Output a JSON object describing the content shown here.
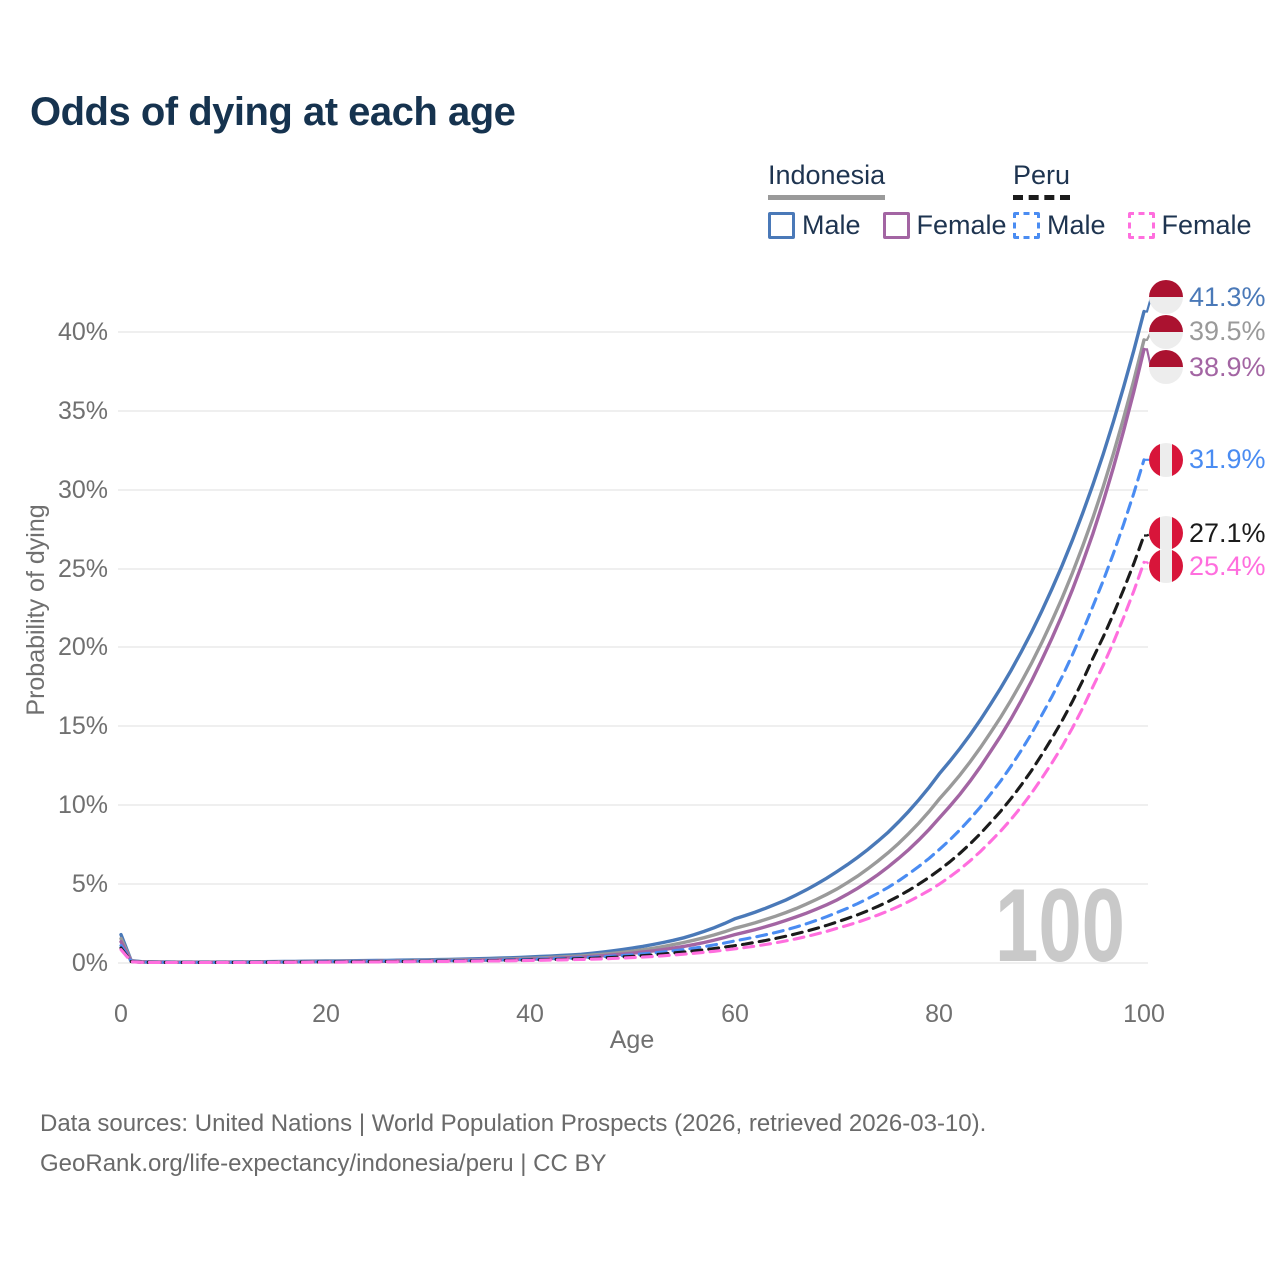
{
  "title": "Odds of dying at each age",
  "legend": {
    "groups": [
      {
        "label": "Indonesia",
        "line_style": "solid",
        "underline_color": "#9a9a9a",
        "items": [
          {
            "label": "Male",
            "color": "#4a79b8",
            "line_style": "solid"
          },
          {
            "label": "Female",
            "color": "#a365a3",
            "line_style": "solid"
          }
        ]
      },
      {
        "label": "Peru",
        "line_style": "dashed",
        "underline_color": "#1b1b1b",
        "items": [
          {
            "label": "Male",
            "color": "#4a8cf2",
            "line_style": "dashed"
          },
          {
            "label": "Female",
            "color": "#ff6ede",
            "line_style": "dashed"
          }
        ]
      }
    ]
  },
  "chart_data": {
    "type": "line",
    "title": "Odds of dying at each age",
    "xlabel": "Age",
    "ylabel": "Probability of dying",
    "xlim": [
      0,
      100
    ],
    "ylim": [
      0,
      43
    ],
    "grid": true,
    "legend_position": "top-right",
    "watermark": "100",
    "x_tick_labels": [
      "0",
      "20",
      "40",
      "60",
      "80",
      "100"
    ],
    "y_tick_labels": [
      "0%",
      "5%",
      "10%",
      "15%",
      "20%",
      "25%",
      "30%",
      "35%",
      "40%"
    ],
    "x": [
      0,
      1,
      2,
      5,
      10,
      15,
      20,
      25,
      30,
      35,
      40,
      45,
      50,
      55,
      60,
      65,
      70,
      75,
      80,
      85,
      90,
      95,
      100
    ],
    "series": [
      {
        "name": "Indonesia male",
        "country": "indonesia",
        "sex": "male",
        "color": "#4a79b8",
        "line_style": "solid",
        "end_value": 41.3,
        "end_label": "41.3%",
        "values": [
          1.8,
          0.15,
          0.08,
          0.06,
          0.06,
          0.09,
          0.13,
          0.16,
          0.2,
          0.27,
          0.38,
          0.55,
          0.95,
          1.6,
          2.8,
          4.0,
          5.8,
          8.3,
          12.0,
          16.4,
          22.3,
          30.3,
          41.3
        ]
      },
      {
        "name": "Indonesia both sexes",
        "country": "indonesia",
        "sex": "both",
        "color": "#9a9a9a",
        "line_style": "solid",
        "end_value": 39.5,
        "end_label": "39.5%",
        "values": [
          1.55,
          0.13,
          0.07,
          0.05,
          0.05,
          0.07,
          0.1,
          0.12,
          0.16,
          0.21,
          0.3,
          0.45,
          0.75,
          1.3,
          2.2,
          3.2,
          4.7,
          7.0,
          10.4,
          14.6,
          20.3,
          28.2,
          39.5
        ]
      },
      {
        "name": "Indonesia female",
        "country": "indonesia",
        "sex": "female",
        "color": "#a365a3",
        "line_style": "solid",
        "end_value": 38.9,
        "end_label": "38.9%",
        "values": [
          1.35,
          0.11,
          0.06,
          0.045,
          0.045,
          0.06,
          0.08,
          0.1,
          0.13,
          0.17,
          0.24,
          0.37,
          0.62,
          1.05,
          1.8,
          2.7,
          4.0,
          6.1,
          9.2,
          13.4,
          19.2,
          27.2,
          38.9
        ]
      },
      {
        "name": "Peru male",
        "country": "peru",
        "sex": "male",
        "color": "#4a8cf2",
        "line_style": "dashed",
        "end_value": 31.9,
        "end_label": "31.9%",
        "values": [
          1.1,
          0.1,
          0.05,
          0.04,
          0.04,
          0.06,
          0.09,
          0.11,
          0.13,
          0.17,
          0.23,
          0.33,
          0.52,
          0.85,
          1.4,
          2.1,
          3.2,
          4.8,
          7.2,
          10.7,
          15.7,
          22.6,
          31.9
        ]
      },
      {
        "name": "Peru both sexes",
        "country": "peru",
        "sex": "both",
        "color": "#1b1b1b",
        "line_style": "dashed",
        "end_value": 27.1,
        "end_label": "27.1%",
        "values": [
          0.95,
          0.09,
          0.045,
          0.035,
          0.035,
          0.05,
          0.07,
          0.09,
          0.11,
          0.14,
          0.19,
          0.27,
          0.42,
          0.7,
          1.1,
          1.7,
          2.6,
          3.9,
          5.9,
          8.9,
          13.2,
          19.3,
          27.1
        ]
      },
      {
        "name": "Peru female",
        "country": "peru",
        "sex": "female",
        "color": "#ff6ede",
        "line_style": "dashed",
        "end_value": 25.4,
        "end_label": "25.4%",
        "values": [
          0.85,
          0.08,
          0.04,
          0.03,
          0.03,
          0.04,
          0.05,
          0.07,
          0.09,
          0.12,
          0.16,
          0.22,
          0.34,
          0.56,
          0.9,
          1.4,
          2.2,
          3.3,
          5.0,
          7.7,
          11.7,
          17.5,
          25.4
        ]
      }
    ]
  },
  "footer": {
    "line1": "Data sources: United Nations | World Population Prospects (2026, retrieved 2026-03-10).",
    "line2": "GeoRank.org/life-expectancy/indonesia/peru | CC BY"
  },
  "colors": {
    "title_text": "#16334f",
    "legend_text": "#1e3450",
    "axis_text": "#707070",
    "grid": "#eaeaea",
    "watermark": "#c9c9c9",
    "footer_text": "#6a6a6a",
    "indonesia_flag_red": "#ab1230",
    "peru_flag_red": "#d8153a",
    "flag_white": "#ededed"
  }
}
